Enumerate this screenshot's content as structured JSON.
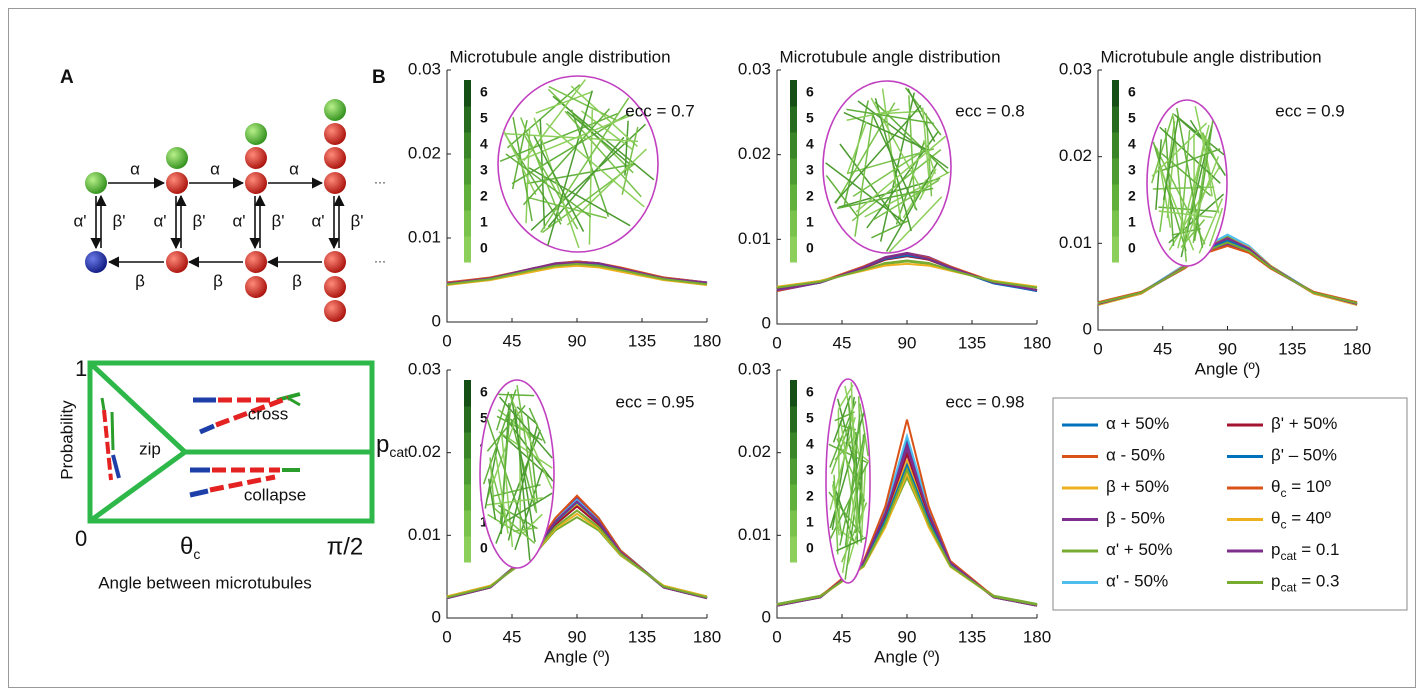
{
  "panel_a": {
    "label": "A",
    "top_rates": [
      "α",
      "α",
      "α"
    ],
    "bottom_rates": [
      "β",
      "β",
      "β"
    ],
    "back_rates": [
      "α'",
      "α'",
      "α'",
      "α'"
    ],
    "forward_rates": [
      "β'",
      "β'",
      "β'",
      "β'"
    ],
    "ellipses": [
      "···",
      "···"
    ],
    "y_top": "1",
    "y_bottom": "0",
    "ylabel": "Probability",
    "regions": [
      "zip",
      "cross",
      "collapse"
    ],
    "p_label": "p",
    "p_sub": "cat",
    "theta": "θ",
    "theta_sub": "c",
    "x_end": "π/2",
    "xlabel": "Angle between microtubules"
  },
  "panel_b": {
    "label": "B"
  },
  "legend": {
    "entries": [
      {
        "name": "α + 50%",
        "color": "#0072bd"
      },
      {
        "name": "α - 50%",
        "color": "#d95319"
      },
      {
        "name": "β + 50%",
        "color": "#edb120"
      },
      {
        "name": "β - 50%",
        "color": "#7e2f8e"
      },
      {
        "name": "α' + 50%",
        "color": "#77ac30"
      },
      {
        "name": "α' - 50%",
        "color": "#4dbeee"
      },
      {
        "name": "β' + 50%",
        "color": "#a2142f"
      },
      {
        "name": "β' – 50%",
        "color": "#0072bd"
      },
      {
        "name": "θ",
        "sub": "c",
        "suffix": " = 10º",
        "color": "#d95319"
      },
      {
        "name": "θ",
        "sub": "c",
        "suffix": " = 40º",
        "color": "#edb120"
      },
      {
        "name": "p",
        "sub": "cat",
        "suffix": " = 0.1",
        "color": "#7e2f8e"
      },
      {
        "name": "p",
        "sub": "cat",
        "suffix": " = 0.3",
        "color": "#77ac30"
      }
    ]
  },
  "chart_data": [
    {
      "type": "line",
      "title": "Microtubule angle distribution",
      "annotation": "ecc = 0.7",
      "x": [
        0,
        30,
        60,
        75,
        90,
        105,
        120,
        150,
        180
      ],
      "xlim": [
        0,
        180
      ],
      "xticks": [
        0,
        45,
        90,
        135,
        180
      ],
      "ylim": [
        0,
        0.03
      ],
      "yticks": [
        0,
        0.01,
        0.02,
        0.03
      ],
      "colorbar_ticks": [
        0,
        1,
        2,
        3,
        4,
        5,
        6
      ],
      "series": [
        {
          "values": [
            0.0046,
            0.0052,
            0.0064,
            0.0069,
            0.0072,
            0.007,
            0.0064,
            0.0052,
            0.0046
          ]
        },
        {
          "values": [
            0.0045,
            0.0052,
            0.0063,
            0.0069,
            0.0071,
            0.0069,
            0.0063,
            0.0052,
            0.0046
          ]
        },
        {
          "values": [
            0.0046,
            0.0051,
            0.0063,
            0.0068,
            0.007,
            0.0068,
            0.0063,
            0.0051,
            0.0045
          ]
        },
        {
          "values": [
            0.0047,
            0.0052,
            0.0064,
            0.007,
            0.0072,
            0.007,
            0.0064,
            0.0053,
            0.0047
          ]
        },
        {
          "values": [
            0.0045,
            0.005,
            0.0061,
            0.0066,
            0.0068,
            0.0066,
            0.0061,
            0.005,
            0.0045
          ]
        },
        {
          "values": [
            0.0046,
            0.0052,
            0.0063,
            0.0068,
            0.007,
            0.0069,
            0.0064,
            0.0052,
            0.0046
          ]
        },
        {
          "values": [
            0.0046,
            0.0051,
            0.0064,
            0.0069,
            0.0071,
            0.0069,
            0.0063,
            0.0052,
            0.0045
          ]
        },
        {
          "values": [
            0.0045,
            0.0052,
            0.0063,
            0.0068,
            0.007,
            0.0068,
            0.0063,
            0.0051,
            0.0046
          ]
        },
        {
          "values": [
            0.0047,
            0.0053,
            0.0064,
            0.0069,
            0.0072,
            0.007,
            0.0065,
            0.0053,
            0.0047
          ]
        },
        {
          "values": [
            0.0044,
            0.005,
            0.006,
            0.0065,
            0.0067,
            0.0065,
            0.006,
            0.005,
            0.0044
          ]
        },
        {
          "values": [
            0.0046,
            0.0052,
            0.0064,
            0.0069,
            0.0071,
            0.007,
            0.0064,
            0.0052,
            0.0047
          ]
        },
        {
          "values": [
            0.0045,
            0.0051,
            0.0062,
            0.0067,
            0.0069,
            0.0067,
            0.0062,
            0.0051,
            0.0045
          ]
        }
      ]
    },
    {
      "type": "line",
      "title": "Microtubule angle distribution",
      "annotation": "ecc = 0.8",
      "x": [
        0,
        30,
        60,
        75,
        90,
        105,
        120,
        150,
        180
      ],
      "xlim": [
        0,
        180
      ],
      "xticks": [
        0,
        45,
        90,
        135,
        180
      ],
      "ylim": [
        0,
        0.03
      ],
      "yticks": [
        0,
        0.01,
        0.02,
        0.03
      ],
      "colorbar_ticks": [
        0,
        1,
        2,
        3,
        4,
        5,
        6
      ],
      "series": [
        {
          "values": [
            0.004,
            0.0049,
            0.0067,
            0.0077,
            0.0083,
            0.0078,
            0.0067,
            0.0049,
            0.0039
          ]
        },
        {
          "values": [
            0.0041,
            0.005,
            0.0068,
            0.0078,
            0.0082,
            0.0077,
            0.0066,
            0.0048,
            0.004
          ]
        },
        {
          "values": [
            0.004,
            0.0049,
            0.0066,
            0.0076,
            0.0081,
            0.0076,
            0.0066,
            0.0049,
            0.004
          ]
        },
        {
          "values": [
            0.0039,
            0.0049,
            0.0068,
            0.0079,
            0.0084,
            0.0079,
            0.0068,
            0.0049,
            0.0039
          ]
        },
        {
          "values": [
            0.0043,
            0.0051,
            0.0064,
            0.0071,
            0.0074,
            0.0071,
            0.0064,
            0.0051,
            0.0043
          ]
        },
        {
          "values": [
            0.004,
            0.005,
            0.0067,
            0.0077,
            0.0082,
            0.0077,
            0.0067,
            0.0049,
            0.004
          ]
        },
        {
          "values": [
            0.0041,
            0.0049,
            0.0066,
            0.0076,
            0.008,
            0.0076,
            0.0066,
            0.0049,
            0.004
          ]
        },
        {
          "values": [
            0.004,
            0.0049,
            0.0067,
            0.0077,
            0.0081,
            0.0077,
            0.0066,
            0.0048,
            0.0039
          ]
        },
        {
          "values": [
            0.0039,
            0.005,
            0.0068,
            0.0078,
            0.0083,
            0.0078,
            0.0068,
            0.005,
            0.004
          ]
        },
        {
          "values": [
            0.0044,
            0.0051,
            0.0063,
            0.0069,
            0.0071,
            0.0069,
            0.0063,
            0.0051,
            0.0044
          ]
        },
        {
          "values": [
            0.004,
            0.0049,
            0.0067,
            0.0078,
            0.0083,
            0.0077,
            0.0067,
            0.0049,
            0.004
          ]
        },
        {
          "values": [
            0.0043,
            0.005,
            0.0064,
            0.0072,
            0.0075,
            0.0072,
            0.0064,
            0.005,
            0.0043
          ]
        }
      ]
    },
    {
      "type": "line",
      "title": "Microtubule angle distribution",
      "annotation": "ecc = 0.9",
      "xlabel": "Angle (º)",
      "x": [
        0,
        30,
        60,
        75,
        90,
        105,
        120,
        150,
        180
      ],
      "xlim": [
        0,
        180
      ],
      "xticks": [
        0,
        45,
        90,
        135,
        180
      ],
      "ylim": [
        0,
        0.03
      ],
      "yticks": [
        0,
        0.01,
        0.02,
        0.03
      ],
      "colorbar_ticks": [
        0,
        1,
        2,
        3,
        4,
        5,
        6
      ],
      "series": [
        {
          "values": [
            0.003,
            0.0043,
            0.0074,
            0.0095,
            0.0107,
            0.0096,
            0.0074,
            0.0043,
            0.003
          ]
        },
        {
          "values": [
            0.003,
            0.0042,
            0.0073,
            0.0094,
            0.0105,
            0.0094,
            0.0073,
            0.0042,
            0.0029
          ]
        },
        {
          "values": [
            0.0031,
            0.0043,
            0.0073,
            0.0093,
            0.0104,
            0.0093,
            0.0073,
            0.0043,
            0.003
          ]
        },
        {
          "values": [
            0.0031,
            0.0043,
            0.0071,
            0.009,
            0.0099,
            0.009,
            0.0071,
            0.0043,
            0.0031
          ]
        },
        {
          "values": [
            0.0029,
            0.0042,
            0.0074,
            0.0096,
            0.0108,
            0.0096,
            0.0074,
            0.0042,
            0.0029
          ]
        },
        {
          "values": [
            0.003,
            0.0043,
            0.0075,
            0.0097,
            0.011,
            0.0097,
            0.0074,
            0.0043,
            0.003
          ]
        },
        {
          "values": [
            0.003,
            0.0042,
            0.0073,
            0.0094,
            0.0104,
            0.0094,
            0.0073,
            0.0042,
            0.003
          ]
        },
        {
          "values": [
            0.0031,
            0.0043,
            0.0073,
            0.0093,
            0.0103,
            0.0093,
            0.0072,
            0.0043,
            0.003
          ]
        },
        {
          "values": [
            0.0032,
            0.0044,
            0.0071,
            0.0089,
            0.0097,
            0.0089,
            0.0071,
            0.0044,
            0.0032
          ]
        },
        {
          "values": [
            0.0029,
            0.0042,
            0.0074,
            0.0095,
            0.0106,
            0.0095,
            0.0074,
            0.0042,
            0.0029
          ]
        },
        {
          "values": [
            0.003,
            0.0043,
            0.0073,
            0.0094,
            0.0106,
            0.0094,
            0.0073,
            0.0043,
            0.003
          ]
        },
        {
          "values": [
            0.0031,
            0.0043,
            0.0072,
            0.0091,
            0.0101,
            0.0091,
            0.0072,
            0.0043,
            0.0031
          ]
        }
      ]
    },
    {
      "type": "line",
      "annotation": "ecc = 0.95",
      "xlabel": "Angle (º)",
      "x": [
        0,
        30,
        60,
        75,
        90,
        105,
        120,
        150,
        180
      ],
      "xlim": [
        0,
        180
      ],
      "xticks": [
        0,
        45,
        90,
        135,
        180
      ],
      "ylim": [
        0,
        0.03
      ],
      "yticks": [
        0,
        0.01,
        0.02,
        0.03
      ],
      "colorbar_ticks": [
        0,
        1,
        2,
        3,
        4,
        5,
        6
      ],
      "series": [
        {
          "values": [
            0.0024,
            0.0038,
            0.0082,
            0.012,
            0.0147,
            0.0121,
            0.0082,
            0.0038,
            0.0024
          ]
        },
        {
          "values": [
            0.0024,
            0.0037,
            0.008,
            0.0117,
            0.0142,
            0.0117,
            0.008,
            0.0037,
            0.0024
          ]
        },
        {
          "values": [
            0.0025,
            0.0038,
            0.0079,
            0.0114,
            0.0137,
            0.0114,
            0.0079,
            0.0038,
            0.0025
          ]
        },
        {
          "values": [
            0.0024,
            0.0037,
            0.0081,
            0.0119,
            0.0145,
            0.0119,
            0.0081,
            0.0037,
            0.0024
          ]
        },
        {
          "values": [
            0.0026,
            0.0039,
            0.0076,
            0.0106,
            0.0122,
            0.0106,
            0.0076,
            0.0039,
            0.0026
          ]
        },
        {
          "values": [
            0.0024,
            0.0037,
            0.0081,
            0.0118,
            0.0143,
            0.0118,
            0.0081,
            0.0037,
            0.0024
          ]
        },
        {
          "values": [
            0.0025,
            0.0038,
            0.0079,
            0.0113,
            0.0135,
            0.0113,
            0.0079,
            0.0038,
            0.0025
          ]
        },
        {
          "values": [
            0.0024,
            0.0037,
            0.008,
            0.0116,
            0.014,
            0.0116,
            0.008,
            0.0037,
            0.0024
          ]
        },
        {
          "values": [
            0.0024,
            0.0037,
            0.0082,
            0.0121,
            0.0148,
            0.0121,
            0.0082,
            0.0037,
            0.0024
          ]
        },
        {
          "values": [
            0.0026,
            0.0039,
            0.0077,
            0.0108,
            0.0126,
            0.0108,
            0.0077,
            0.0039,
            0.0026
          ]
        },
        {
          "values": [
            0.0024,
            0.0037,
            0.008,
            0.0117,
            0.0141,
            0.0117,
            0.008,
            0.0037,
            0.0024
          ]
        },
        {
          "values": [
            0.0025,
            0.0038,
            0.0078,
            0.011,
            0.013,
            0.011,
            0.0078,
            0.0038,
            0.0025
          ]
        }
      ]
    },
    {
      "type": "line",
      "annotation": "ecc = 0.98",
      "xlabel": "Angle (º)",
      "x": [
        0,
        30,
        60,
        75,
        90,
        105,
        120,
        150,
        180
      ],
      "xlim": [
        0,
        180
      ],
      "xticks": [
        0,
        45,
        90,
        135,
        180
      ],
      "ylim": [
        0,
        0.03
      ],
      "yticks": [
        0,
        0.01,
        0.02,
        0.03
      ],
      "colorbar_ticks": [
        0,
        1,
        2,
        3,
        4,
        5,
        6
      ],
      "series": [
        {
          "values": [
            0.0015,
            0.0025,
            0.0068,
            0.013,
            0.0215,
            0.0131,
            0.0068,
            0.0025,
            0.0015
          ]
        },
        {
          "values": [
            0.0015,
            0.0025,
            0.0066,
            0.0125,
            0.02,
            0.0125,
            0.0066,
            0.0025,
            0.0015
          ]
        },
        {
          "values": [
            0.0016,
            0.0026,
            0.0065,
            0.012,
            0.019,
            0.012,
            0.0065,
            0.0026,
            0.0016
          ]
        },
        {
          "values": [
            0.0015,
            0.0025,
            0.0067,
            0.0128,
            0.021,
            0.0128,
            0.0067,
            0.0025,
            0.0015
          ]
        },
        {
          "values": [
            0.0017,
            0.0027,
            0.0063,
            0.0112,
            0.017,
            0.0112,
            0.0063,
            0.0027,
            0.0017
          ]
        },
        {
          "values": [
            0.0015,
            0.0025,
            0.0068,
            0.0132,
            0.022,
            0.0132,
            0.0068,
            0.0025,
            0.0015
          ]
        },
        {
          "values": [
            0.0015,
            0.0025,
            0.0066,
            0.0124,
            0.0198,
            0.0124,
            0.0066,
            0.0025,
            0.0015
          ]
        },
        {
          "values": [
            0.0016,
            0.0026,
            0.0064,
            0.0118,
            0.0185,
            0.0118,
            0.0064,
            0.0026,
            0.0016
          ]
        },
        {
          "values": [
            0.0015,
            0.0026,
            0.0069,
            0.0135,
            0.024,
            0.0135,
            0.0069,
            0.0026,
            0.0015
          ]
        },
        {
          "values": [
            0.0016,
            0.0026,
            0.0062,
            0.011,
            0.0175,
            0.011,
            0.0062,
            0.0026,
            0.0016
          ]
        },
        {
          "values": [
            0.0015,
            0.0025,
            0.0067,
            0.0127,
            0.0205,
            0.0127,
            0.0067,
            0.0025,
            0.0015
          ]
        },
        {
          "values": [
            0.0016,
            0.0026,
            0.0063,
            0.0114,
            0.018,
            0.0114,
            0.0063,
            0.0026,
            0.0016
          ]
        }
      ]
    }
  ]
}
